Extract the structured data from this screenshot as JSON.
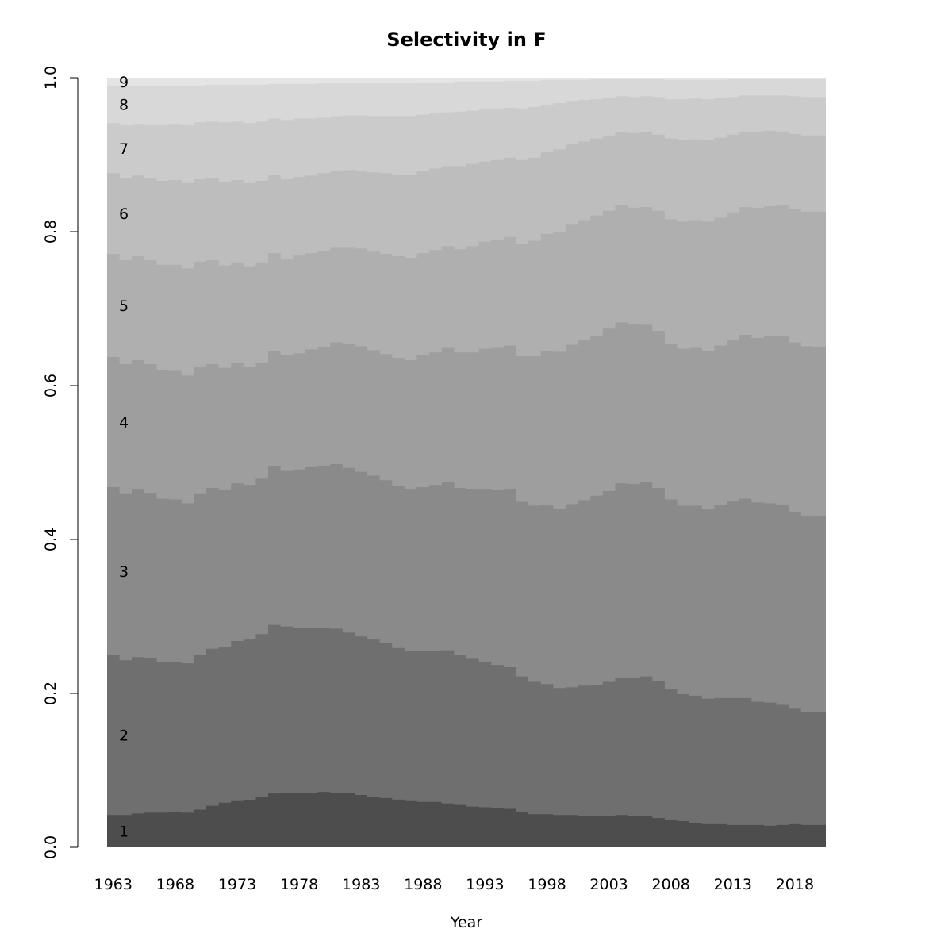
{
  "chart_data": {
    "type": "area",
    "title": "Selectivity in F",
    "xlabel": "Year",
    "ylabel": "",
    "xlim": [
      1963,
      2021
    ],
    "ylim": [
      0,
      1
    ],
    "x_tick_labels": [
      "1963",
      "1968",
      "1973",
      "1978",
      "1983",
      "1988",
      "1993",
      "1998",
      "2003",
      "2008",
      "2013",
      "2018"
    ],
    "y_tick_labels": [
      "0.0",
      "0.2",
      "0.4",
      "0.6",
      "0.8",
      "1.0"
    ],
    "grid": false,
    "legend": "inline labels at left",
    "stacked": true,
    "step": true,
    "x": [
      1963,
      1964,
      1965,
      1966,
      1967,
      1968,
      1969,
      1970,
      1971,
      1972,
      1973,
      1974,
      1975,
      1976,
      1977,
      1978,
      1979,
      1980,
      1981,
      1982,
      1983,
      1984,
      1985,
      1986,
      1987,
      1988,
      1989,
      1990,
      1991,
      1992,
      1993,
      1994,
      1995,
      1996,
      1997,
      1998,
      1999,
      2000,
      2001,
      2002,
      2003,
      2004,
      2005,
      2006,
      2007,
      2008,
      2009,
      2010,
      2011,
      2012,
      2013,
      2014,
      2015,
      2016,
      2017,
      2018,
      2019,
      2020
    ],
    "cumulative_series": [
      {
        "name": "1",
        "color": "#4d4d4d",
        "values": [
          0.042,
          0.042,
          0.044,
          0.045,
          0.045,
          0.046,
          0.045,
          0.049,
          0.054,
          0.058,
          0.06,
          0.061,
          0.066,
          0.07,
          0.071,
          0.071,
          0.071,
          0.072,
          0.071,
          0.071,
          0.068,
          0.066,
          0.064,
          0.062,
          0.06,
          0.059,
          0.059,
          0.057,
          0.055,
          0.053,
          0.052,
          0.051,
          0.05,
          0.046,
          0.043,
          0.043,
          0.042,
          0.042,
          0.041,
          0.041,
          0.041,
          0.042,
          0.041,
          0.041,
          0.038,
          0.036,
          0.034,
          0.032,
          0.03,
          0.03,
          0.029,
          0.029,
          0.029,
          0.028,
          0.029,
          0.03,
          0.029,
          0.029
        ]
      },
      {
        "name": "2",
        "color": "#6f6f6f",
        "values": [
          0.25,
          0.243,
          0.247,
          0.246,
          0.241,
          0.241,
          0.239,
          0.25,
          0.258,
          0.26,
          0.268,
          0.27,
          0.277,
          0.289,
          0.287,
          0.285,
          0.285,
          0.285,
          0.284,
          0.279,
          0.274,
          0.27,
          0.266,
          0.259,
          0.255,
          0.255,
          0.255,
          0.256,
          0.25,
          0.245,
          0.241,
          0.237,
          0.234,
          0.222,
          0.215,
          0.212,
          0.207,
          0.208,
          0.21,
          0.211,
          0.215,
          0.22,
          0.22,
          0.222,
          0.216,
          0.205,
          0.199,
          0.197,
          0.193,
          0.194,
          0.194,
          0.194,
          0.189,
          0.188,
          0.185,
          0.18,
          0.176,
          0.176
        ]
      },
      {
        "name": "3",
        "color": "#8a8a8a",
        "values": [
          0.468,
          0.459,
          0.465,
          0.46,
          0.453,
          0.452,
          0.447,
          0.459,
          0.467,
          0.464,
          0.473,
          0.471,
          0.479,
          0.495,
          0.489,
          0.491,
          0.494,
          0.496,
          0.498,
          0.493,
          0.488,
          0.483,
          0.477,
          0.47,
          0.465,
          0.468,
          0.471,
          0.475,
          0.467,
          0.465,
          0.465,
          0.464,
          0.465,
          0.449,
          0.444,
          0.445,
          0.44,
          0.446,
          0.451,
          0.457,
          0.463,
          0.473,
          0.472,
          0.475,
          0.467,
          0.452,
          0.444,
          0.444,
          0.44,
          0.445,
          0.45,
          0.453,
          0.448,
          0.447,
          0.445,
          0.436,
          0.431,
          0.43
        ]
      },
      {
        "name": "4",
        "color": "#9e9e9e",
        "values": [
          0.637,
          0.628,
          0.633,
          0.628,
          0.62,
          0.619,
          0.613,
          0.624,
          0.628,
          0.623,
          0.63,
          0.624,
          0.63,
          0.645,
          0.639,
          0.642,
          0.647,
          0.65,
          0.656,
          0.654,
          0.651,
          0.646,
          0.641,
          0.636,
          0.633,
          0.64,
          0.643,
          0.649,
          0.643,
          0.643,
          0.648,
          0.649,
          0.652,
          0.638,
          0.638,
          0.645,
          0.644,
          0.653,
          0.659,
          0.665,
          0.674,
          0.682,
          0.68,
          0.679,
          0.671,
          0.654,
          0.648,
          0.649,
          0.645,
          0.652,
          0.659,
          0.666,
          0.662,
          0.665,
          0.664,
          0.656,
          0.651,
          0.65
        ]
      },
      {
        "name": "5",
        "color": "#afafaf",
        "values": [
          0.771,
          0.763,
          0.768,
          0.763,
          0.757,
          0.757,
          0.752,
          0.761,
          0.763,
          0.756,
          0.76,
          0.755,
          0.76,
          0.772,
          0.765,
          0.769,
          0.772,
          0.775,
          0.78,
          0.78,
          0.778,
          0.774,
          0.771,
          0.768,
          0.766,
          0.772,
          0.776,
          0.781,
          0.777,
          0.781,
          0.787,
          0.789,
          0.793,
          0.784,
          0.788,
          0.797,
          0.8,
          0.81,
          0.815,
          0.821,
          0.827,
          0.834,
          0.831,
          0.832,
          0.827,
          0.816,
          0.813,
          0.815,
          0.813,
          0.818,
          0.825,
          0.832,
          0.831,
          0.833,
          0.834,
          0.829,
          0.826,
          0.826
        ]
      },
      {
        "name": "6",
        "color": "#bdbdbd",
        "values": [
          0.876,
          0.87,
          0.873,
          0.869,
          0.866,
          0.867,
          0.863,
          0.868,
          0.869,
          0.864,
          0.867,
          0.863,
          0.866,
          0.874,
          0.868,
          0.871,
          0.873,
          0.876,
          0.879,
          0.88,
          0.879,
          0.877,
          0.876,
          0.874,
          0.874,
          0.879,
          0.882,
          0.885,
          0.885,
          0.888,
          0.891,
          0.893,
          0.896,
          0.893,
          0.896,
          0.904,
          0.907,
          0.914,
          0.917,
          0.921,
          0.925,
          0.929,
          0.928,
          0.929,
          0.926,
          0.921,
          0.919,
          0.92,
          0.919,
          0.922,
          0.926,
          0.93,
          0.93,
          0.931,
          0.93,
          0.927,
          0.925,
          0.925
        ]
      },
      {
        "name": "7",
        "color": "#cbcbcb",
        "values": [
          0.941,
          0.939,
          0.94,
          0.939,
          0.939,
          0.94,
          0.939,
          0.942,
          0.943,
          0.942,
          0.943,
          0.941,
          0.943,
          0.947,
          0.945,
          0.947,
          0.947,
          0.948,
          0.95,
          0.951,
          0.951,
          0.95,
          0.95,
          0.95,
          0.95,
          0.952,
          0.954,
          0.955,
          0.956,
          0.957,
          0.959,
          0.96,
          0.961,
          0.96,
          0.962,
          0.965,
          0.967,
          0.97,
          0.971,
          0.972,
          0.974,
          0.976,
          0.975,
          0.976,
          0.975,
          0.972,
          0.972,
          0.973,
          0.972,
          0.974,
          0.975,
          0.977,
          0.977,
          0.977,
          0.977,
          0.976,
          0.975,
          0.975
        ]
      },
      {
        "name": "8",
        "color": "#d8d8d8",
        "values": [
          0.99,
          0.99,
          0.99,
          0.99,
          0.99,
          0.99,
          0.99,
          0.99,
          0.991,
          0.991,
          0.991,
          0.991,
          0.991,
          0.992,
          0.992,
          0.992,
          0.992,
          0.993,
          0.993,
          0.993,
          0.993,
          0.993,
          0.993,
          0.993,
          0.993,
          0.994,
          0.994,
          0.994,
          0.995,
          0.995,
          0.995,
          0.995,
          0.996,
          0.996,
          0.996,
          0.997,
          0.997,
          0.997,
          0.997,
          0.998,
          0.998,
          0.998,
          0.998,
          0.998,
          0.998,
          0.997,
          0.997,
          0.997,
          0.997,
          0.997,
          0.998,
          0.998,
          0.998,
          0.998,
          0.998,
          0.998,
          0.998,
          0.998
        ]
      },
      {
        "name": "9",
        "color": "#e5e5e5",
        "values": [
          1,
          1,
          1,
          1,
          1,
          1,
          1,
          1,
          1,
          1,
          1,
          1,
          1,
          1,
          1,
          1,
          1,
          1,
          1,
          1,
          1,
          1,
          1,
          1,
          1,
          1,
          1,
          1,
          1,
          1,
          1,
          1,
          1,
          1,
          1,
          1,
          1,
          1,
          1,
          1,
          1,
          1,
          1,
          1,
          1,
          1,
          1,
          1,
          1,
          1,
          1,
          1,
          1,
          1,
          1,
          1,
          1,
          1
        ]
      }
    ]
  }
}
